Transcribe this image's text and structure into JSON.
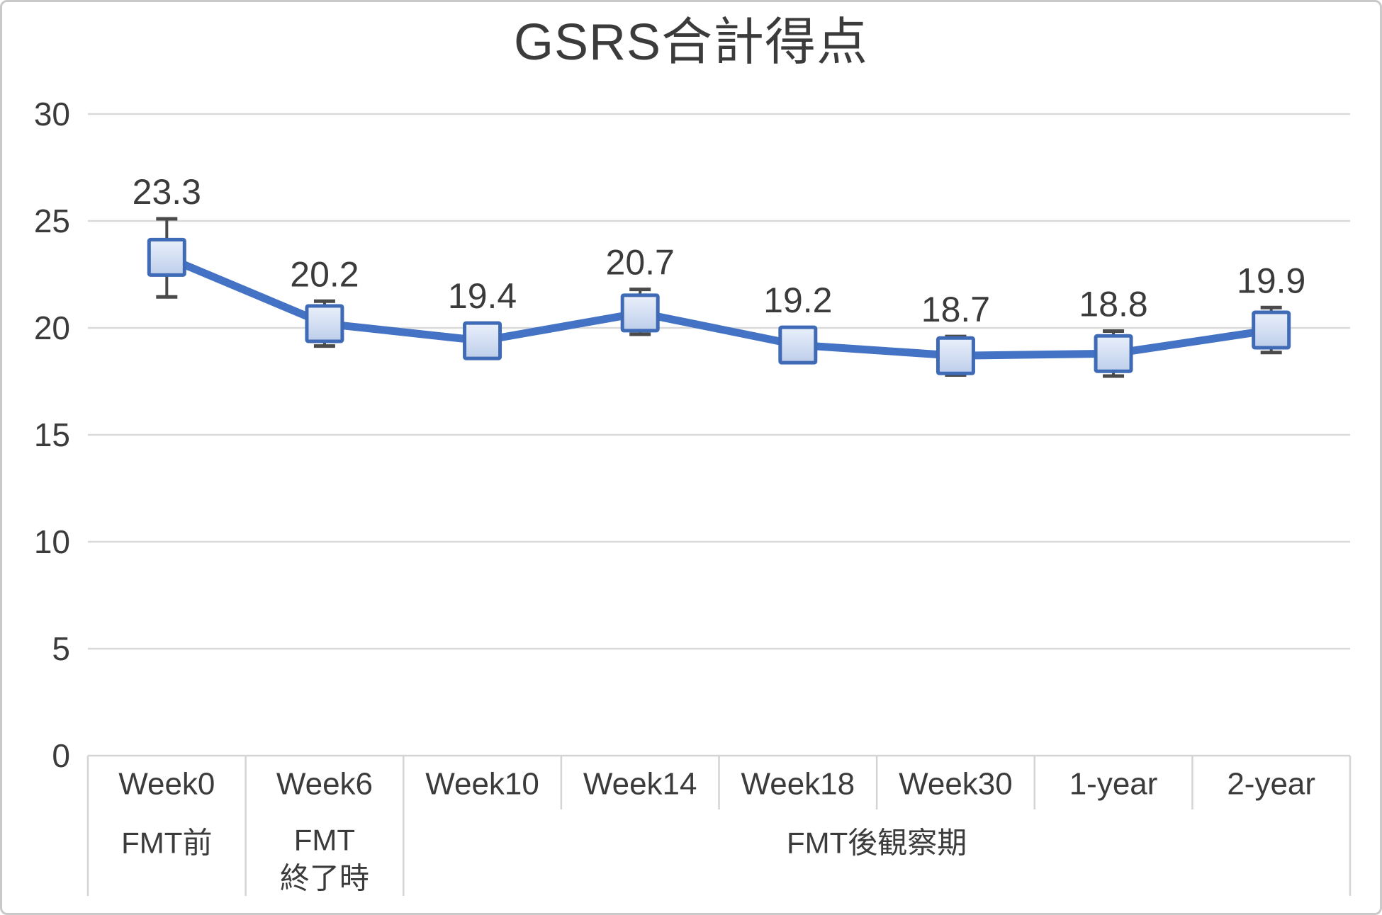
{
  "chart_data": {
    "type": "line",
    "title": "GSRS合計得点",
    "categories": [
      "Week0",
      "Week6",
      "Week10",
      "Week14",
      "Week18",
      "Week30",
      "1-year",
      "2-year"
    ],
    "series": [
      {
        "name": "GSRS合計得点",
        "values": [
          23.3,
          20.2,
          19.4,
          20.7,
          19.2,
          18.7,
          18.8,
          19.9
        ]
      }
    ],
    "data_labels": [
      "23.3",
      "20.2",
      "19.4",
      "20.7",
      "19.2",
      "18.7",
      "18.8",
      "19.9"
    ],
    "error_plus": [
      1.8,
      1.05,
      0.5,
      1.1,
      0.5,
      0.9,
      1.05,
      1.05
    ],
    "error_minus": [
      1.85,
      1.05,
      0.5,
      1.0,
      0.5,
      0.9,
      1.05,
      1.05
    ],
    "y_axis": {
      "min": 0,
      "max": 30,
      "step": 5,
      "ticks": [
        "0",
        "5",
        "10",
        "15",
        "20",
        "25",
        "30"
      ]
    },
    "x_groups": [
      {
        "lines": [
          "FMT前"
        ],
        "start": 0,
        "end": 0
      },
      {
        "lines": [
          "FMT",
          "終了時"
        ],
        "start": 1,
        "end": 1
      },
      {
        "lines": [
          "FMT後観察期"
        ],
        "start": 2,
        "end": 7
      }
    ],
    "grid": true,
    "legend": "none",
    "marker_shape": "square",
    "colors": {
      "line": "#4472C4",
      "marker_border": "#3F6AB5",
      "marker_fill_top": "#EAF0FB",
      "marker_fill_bottom": "#BDCEEB",
      "error_bar": "#4A4A4A",
      "gridline": "#D9D9D9",
      "axis_line": "#D4D4D4",
      "text": "#3B3B3B"
    }
  }
}
